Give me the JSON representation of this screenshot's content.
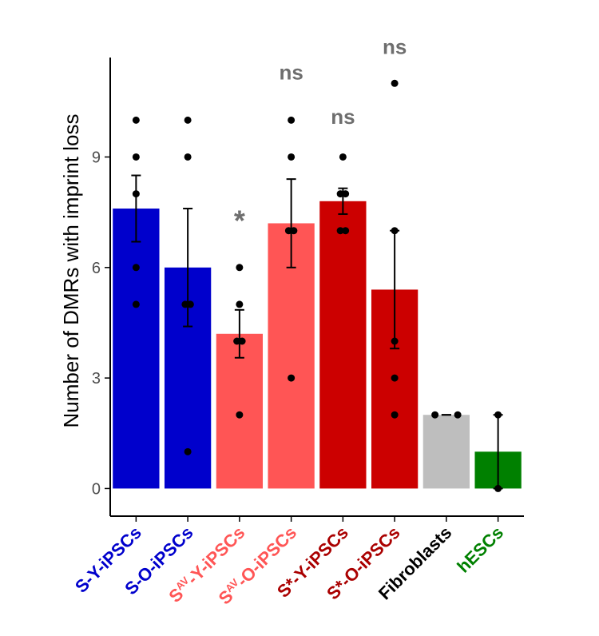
{
  "chart_data": {
    "type": "bar",
    "title": "",
    "xlabel": "",
    "ylabel": "Number of DMRs with imprint loss",
    "ylim": [
      -0.75,
      11.7
    ],
    "yticks": [
      0,
      3,
      6,
      9
    ],
    "grid": false,
    "legend": "none",
    "categories": [
      {
        "label": "S-Y-iPSCs",
        "prefix": "S",
        "sup": "",
        "suffix": "",
        "color": "#0000cc",
        "label_color": "#0000cc"
      },
      {
        "label": "S-O-iPSCs",
        "prefix": "S",
        "sup": "",
        "suffix": "",
        "color": "#0000cc",
        "label_color": "#0000cc"
      },
      {
        "label": "Sᴬⱽ-Y-iPSCs",
        "prefix": "S",
        "sup": "AV",
        "suffix": "-Y-iPSCs",
        "color": "#ff5555",
        "label_color": "#ff5555"
      },
      {
        "label": "Sᴬⱽ-O-iPSCs",
        "prefix": "S",
        "sup": "AV",
        "suffix": "-O-iPSCs",
        "color": "#ff5555",
        "label_color": "#ff5555"
      },
      {
        "label": "S*-Y-iPSCs",
        "prefix": "S*",
        "sup": "",
        "suffix": "-Y-iPSCs",
        "color": "#cc0000",
        "label_color": "#aa0000"
      },
      {
        "label": "S*-O-iPSCs",
        "prefix": "S*",
        "sup": "",
        "suffix": "-O-iPSCs",
        "color": "#cc0000",
        "label_color": "#aa0000"
      },
      {
        "label": "Fibroblasts",
        "prefix": "",
        "sup": "",
        "suffix": "",
        "color": "#bebebe",
        "label_color": "#000000"
      },
      {
        "label": "hESCs",
        "prefix": "",
        "sup": "",
        "suffix": "",
        "color": "#008000",
        "label_color": "#008000"
      }
    ],
    "values": [
      7.6,
      6.0,
      4.2,
      7.2,
      7.8,
      5.4,
      2.0,
      1.0
    ],
    "error": [
      {
        "low": 6.7,
        "high": 8.5
      },
      {
        "low": 4.4,
        "high": 7.6
      },
      {
        "low": 3.55,
        "high": 4.85
      },
      {
        "low": 6.0,
        "high": 8.4
      },
      {
        "low": 7.45,
        "high": 8.15
      },
      {
        "low": 3.8,
        "high": 7.0
      },
      {
        "low": 2.0,
        "high": 2.0
      },
      {
        "low": 0.0,
        "high": 2.0
      }
    ],
    "points": [
      [
        [
          0,
          10
        ],
        [
          0,
          9
        ],
        [
          0,
          8
        ],
        [
          0,
          6
        ],
        [
          0,
          5
        ]
      ],
      [
        [
          0,
          10
        ],
        [
          0,
          9
        ],
        [
          -0.05,
          5
        ],
        [
          0.05,
          5
        ],
        [
          0,
          1
        ]
      ],
      [
        [
          0,
          6
        ],
        [
          0,
          5
        ],
        [
          -0.05,
          4
        ],
        [
          0.05,
          4
        ],
        [
          0,
          2
        ]
      ],
      [
        [
          0,
          10
        ],
        [
          0,
          9
        ],
        [
          -0.05,
          7
        ],
        [
          0.05,
          7
        ],
        [
          0,
          3
        ]
      ],
      [
        [
          0,
          9
        ],
        [
          -0.05,
          8
        ],
        [
          0.05,
          8
        ],
        [
          -0.05,
          7
        ],
        [
          0.05,
          7
        ]
      ],
      [
        [
          0,
          11
        ],
        [
          0,
          7
        ],
        [
          0,
          4
        ],
        [
          0,
          3
        ],
        [
          0,
          2
        ]
      ],
      [
        [
          -0.22,
          2
        ],
        [
          0.22,
          2
        ]
      ],
      [
        [
          0,
          2
        ],
        [
          0,
          0
        ]
      ]
    ],
    "annotations": [
      {
        "index": 2,
        "text": "*",
        "y": 7.0,
        "size": 36
      },
      {
        "index": 3,
        "text": "ns",
        "y": 11.1,
        "size": 26
      },
      {
        "index": 4,
        "text": "ns",
        "y": 9.9,
        "size": 26
      },
      {
        "index": 5,
        "text": "ns",
        "y": 11.8,
        "size": 26
      }
    ]
  }
}
